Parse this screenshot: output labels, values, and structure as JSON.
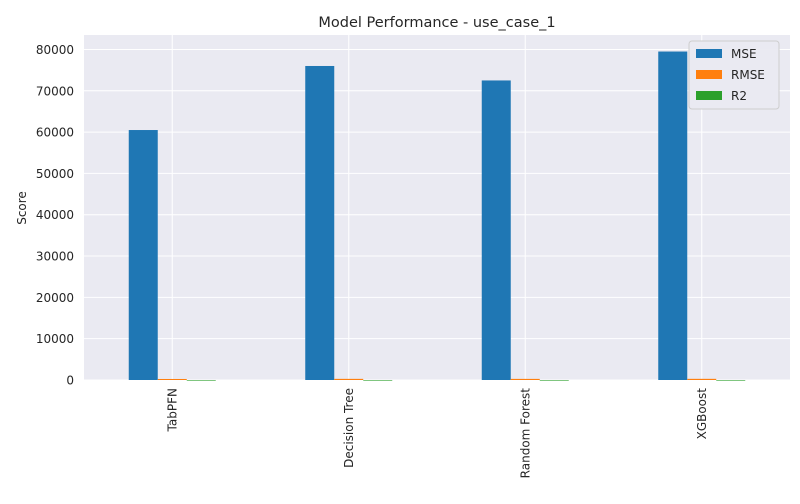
{
  "chart_data": {
    "type": "bar",
    "title": "Model Performance - use_case_1",
    "xlabel": "",
    "ylabel": "Score",
    "categories": [
      "TabPFN",
      "Decision Tree",
      "Random Forest",
      "XGBoost"
    ],
    "series": [
      {
        "name": "MSE",
        "color": "#1f77b4",
        "values": [
          60500,
          76000,
          72500,
          79500
        ]
      },
      {
        "name": "RMSE",
        "color": "#ff7f0e",
        "values": [
          246,
          276,
          269,
          282
        ]
      },
      {
        "name": "R2",
        "color": "#2ca02c",
        "values": [
          0.6,
          0.5,
          0.52,
          0.48
        ]
      }
    ],
    "ylim": [
      0,
      83500
    ],
    "yticks": [
      0,
      10000,
      20000,
      30000,
      40000,
      50000,
      60000,
      70000,
      80000
    ],
    "grid": true,
    "legend_position": "top-right",
    "background": "#eaeaf2"
  }
}
